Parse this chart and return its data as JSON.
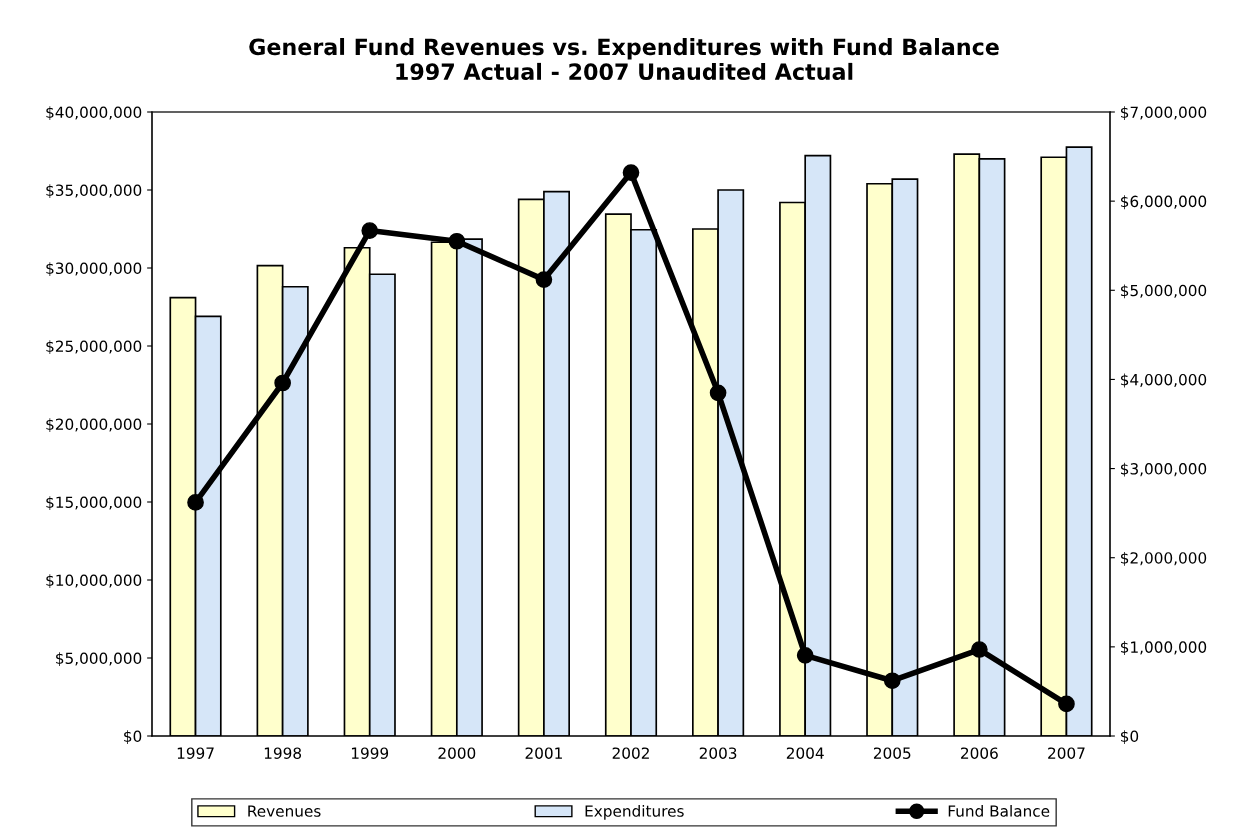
{
  "chart_data": {
    "type": "bar",
    "title": "General Fund Revenues vs. Expenditures with Fund Balance\n1997 Actual - 2007 Unaudited Actual",
    "categories": [
      "1997",
      "1998",
      "1999",
      "2000",
      "2001",
      "2002",
      "2003",
      "2004",
      "2005",
      "2006",
      "2007"
    ],
    "series": [
      {
        "name": "Revenues",
        "color": "#ffffcc",
        "values": [
          28100000,
          30150000,
          31300000,
          31650000,
          34400000,
          33450000,
          32500000,
          34200000,
          35400000,
          37300000,
          37100000
        ]
      },
      {
        "name": "Expenditures",
        "color": "#d6e6f8",
        "values": [
          26900000,
          28800000,
          29600000,
          31850000,
          34900000,
          32450000,
          35000000,
          37200000,
          35700000,
          37000000,
          37750000
        ]
      },
      {
        "name": "Fund Balance",
        "type": "line",
        "axis": "y2",
        "color": "#000000",
        "values": [
          2620000,
          3960000,
          5670000,
          5550000,
          5120000,
          6320000,
          3850000,
          905000,
          620000,
          970000,
          360000
        ]
      }
    ],
    "ylim": [
      0,
      40000000
    ],
    "yticks": [
      {
        "value": 0,
        "label": "$0"
      },
      {
        "value": 5000000,
        "label": "$5,000,000"
      },
      {
        "value": 10000000,
        "label": "$10,000,000"
      },
      {
        "value": 15000000,
        "label": "$15,000,000"
      },
      {
        "value": 20000000,
        "label": "$20,000,000"
      },
      {
        "value": 25000000,
        "label": "$25,000,000"
      },
      {
        "value": 30000000,
        "label": "$30,000,000"
      },
      {
        "value": 35000000,
        "label": "$35,000,000"
      },
      {
        "value": 40000000,
        "label": "$40,000,000"
      }
    ],
    "y2lim": [
      0,
      7000000
    ],
    "y2ticks": [
      {
        "value": 0,
        "label": "$0"
      },
      {
        "value": 1000000,
        "label": "$1,000,000"
      },
      {
        "value": 2000000,
        "label": "$2,000,000"
      },
      {
        "value": 3000000,
        "label": "$3,000,000"
      },
      {
        "value": 4000000,
        "label": "$4,000,000"
      },
      {
        "value": 5000000,
        "label": "$5,000,000"
      },
      {
        "value": 6000000,
        "label": "$6,000,000"
      },
      {
        "value": 7000000,
        "label": "$7,000,000"
      }
    ],
    "marker": "circle",
    "line_style": "solid",
    "legend": "bottom",
    "grid": false
  }
}
